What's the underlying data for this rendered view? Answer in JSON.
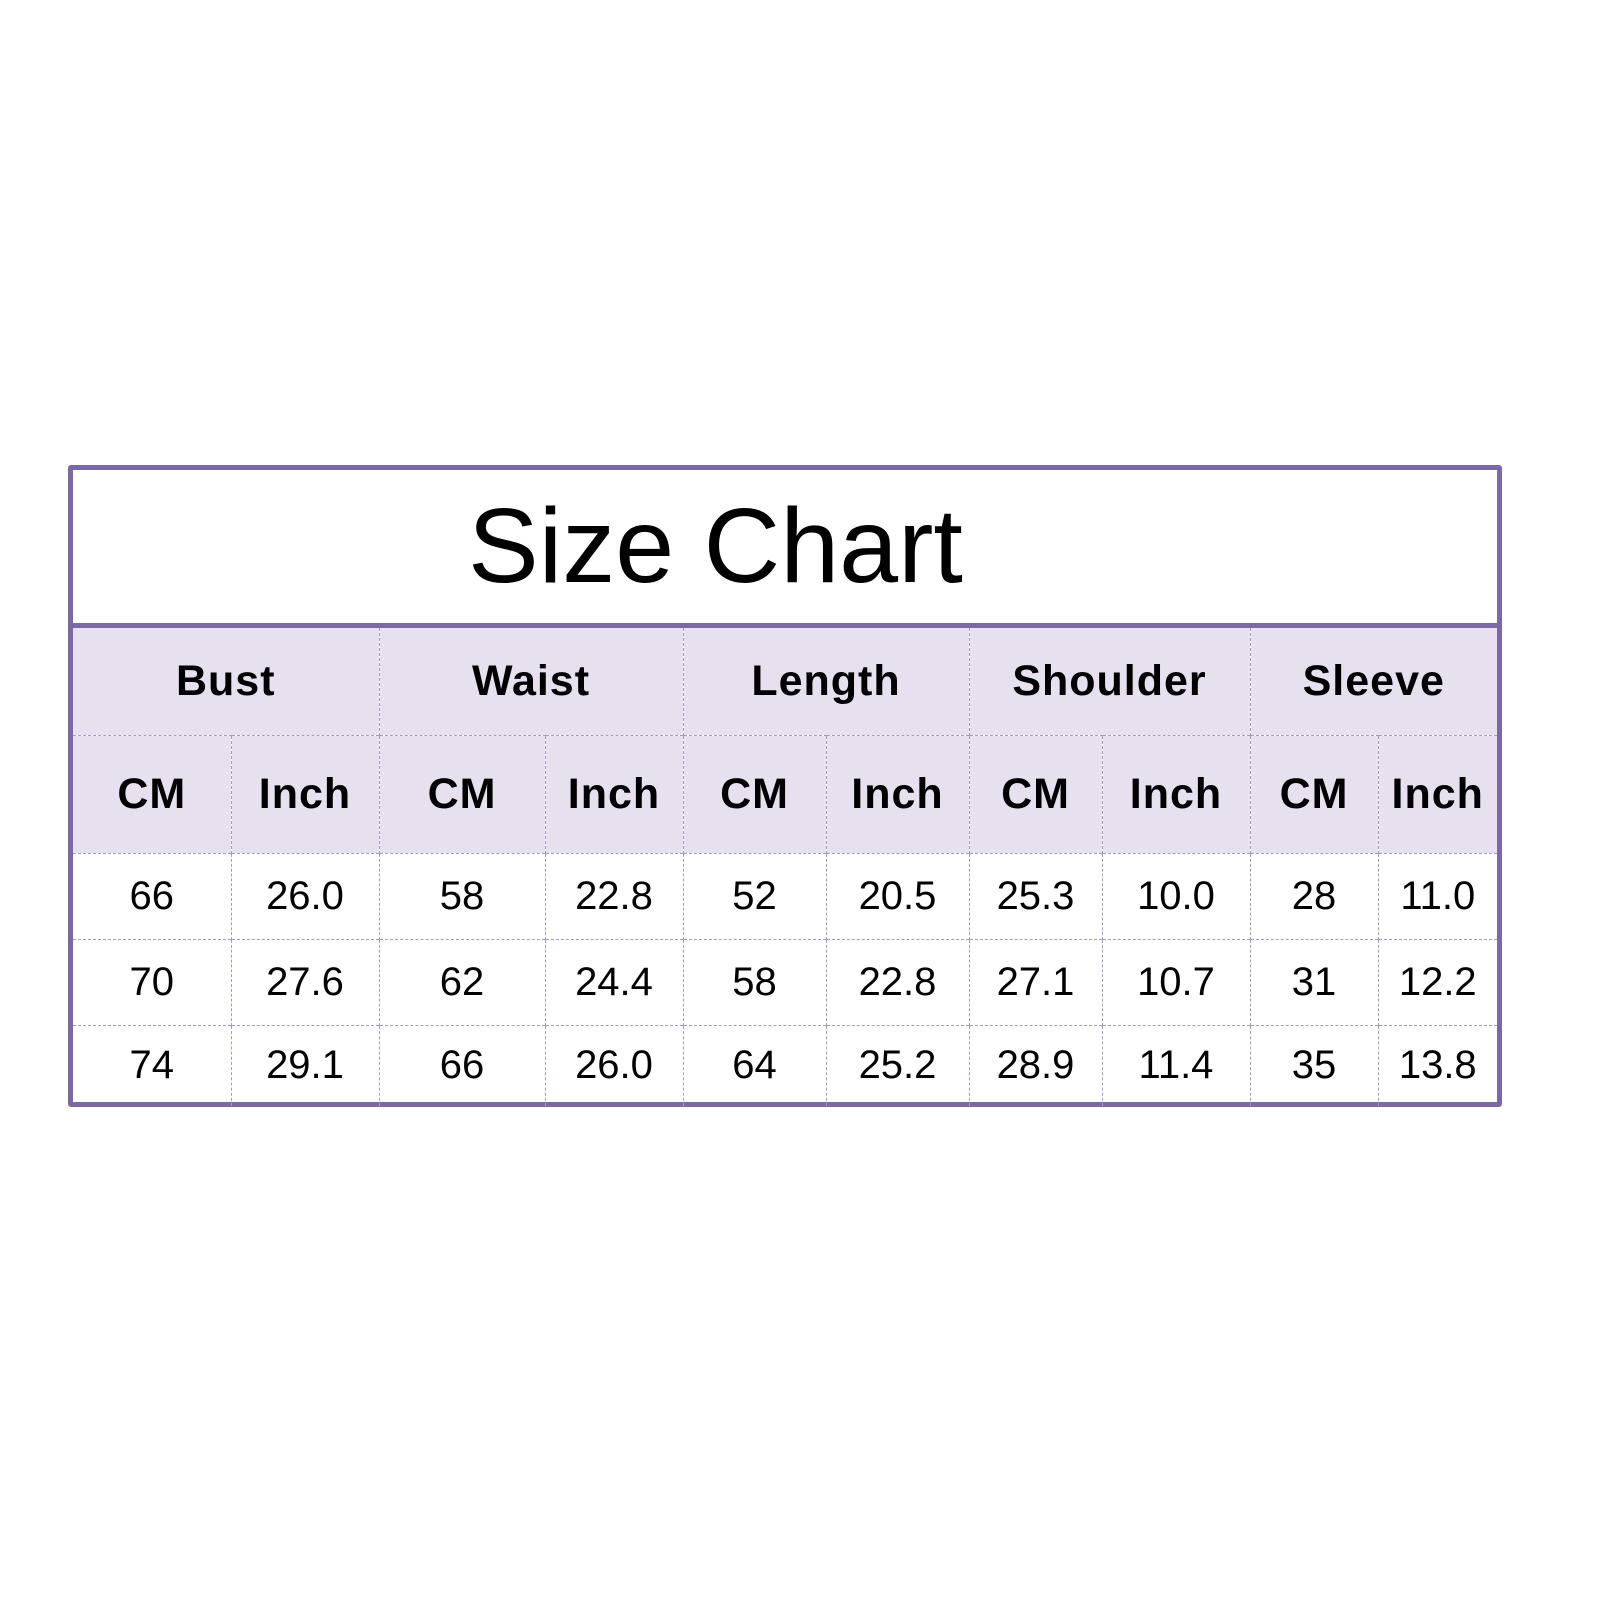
{
  "title": "Size Chart",
  "colors": {
    "frame": "#7d68a6",
    "header_bg": "#e6e0ef",
    "grid": "#a598c2"
  },
  "groups": [
    "Bust",
    "Waist",
    "Length",
    "Shoulder",
    "Sleeve"
  ],
  "units": [
    "CM",
    "Inch",
    "CM",
    "Inch",
    "CM",
    "Inch",
    "CM",
    "Inch",
    "CM",
    "Inch"
  ],
  "rows": [
    [
      "66",
      "26.0",
      "58",
      "22.8",
      "52",
      "20.5",
      "25.3",
      "10.0",
      "28",
      "11.0"
    ],
    [
      "70",
      "27.6",
      "62",
      "24.4",
      "58",
      "22.8",
      "27.1",
      "10.7",
      "31",
      "12.2"
    ],
    [
      "74",
      "29.1",
      "66",
      "26.0",
      "64",
      "25.2",
      "28.9",
      "11.4",
      "35",
      "13.8"
    ]
  ]
}
